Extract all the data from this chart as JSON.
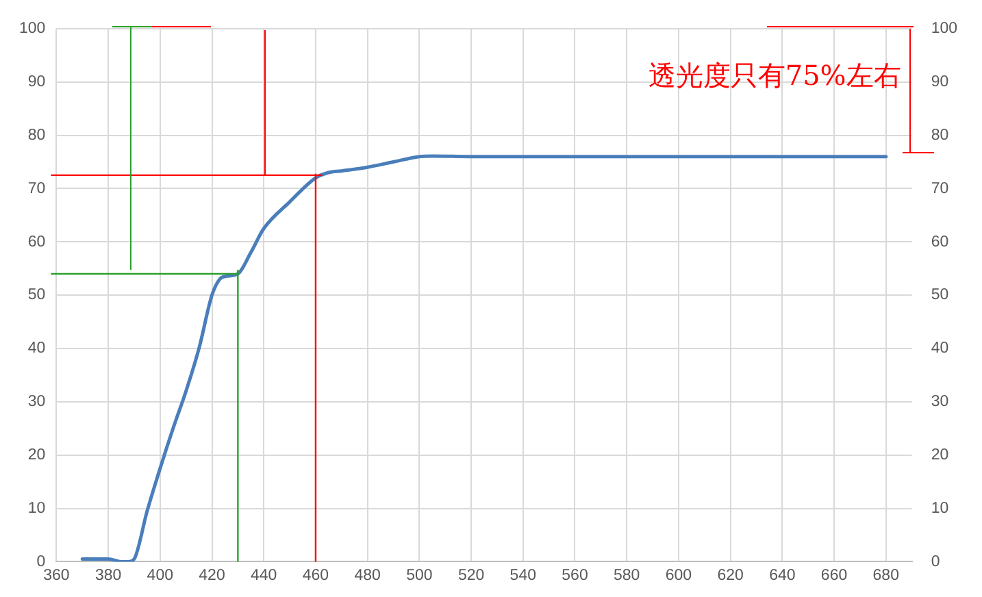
{
  "chart_data": {
    "type": "line",
    "x": [
      370,
      380,
      385,
      388,
      390,
      395,
      400,
      405,
      410,
      415,
      420,
      423,
      425,
      430,
      435,
      440,
      450,
      460,
      465,
      470,
      480,
      490,
      500,
      505,
      520,
      560,
      600,
      640,
      680
    ],
    "series": [
      {
        "color": "#4a7ebb",
        "values": [
          0.5,
          0.5,
          0,
          0,
          0.5,
          9.5,
          17.5,
          25,
          32,
          40,
          50,
          53,
          53.5,
          54,
          58,
          62.5,
          67.5,
          72,
          73,
          73.3,
          74,
          75,
          76,
          76.1,
          76,
          76,
          76,
          76,
          76
        ]
      }
    ],
    "xlim": [
      360,
      690
    ],
    "xticks": [
      360,
      380,
      400,
      420,
      440,
      460,
      480,
      500,
      520,
      540,
      560,
      580,
      600,
      620,
      640,
      660,
      680
    ],
    "ylim": [
      0,
      100
    ],
    "yticks": [
      0,
      10,
      20,
      30,
      40,
      50,
      60,
      70,
      80,
      90,
      100
    ],
    "y2lim": [
      0,
      100
    ],
    "y2ticks": [
      0,
      10,
      20,
      30,
      40,
      50,
      60,
      70,
      80,
      90,
      100
    ],
    "grid": true,
    "legend": false,
    "marker": "none",
    "line_style": "solid",
    "ref_lines": [
      {
        "axis": "y",
        "value": 54,
        "label": null,
        "color": "#2ca02c"
      },
      {
        "axis": "y",
        "value": 72.5,
        "label": null,
        "color": "#ff0000"
      },
      {
        "axis": "x",
        "value": 430,
        "label": null,
        "color": "#2ca02c"
      },
      {
        "axis": "x",
        "value": 460,
        "label": null,
        "color": "#ff0000"
      }
    ],
    "annotations": [
      "透光度只有75%左右"
    ]
  }
}
